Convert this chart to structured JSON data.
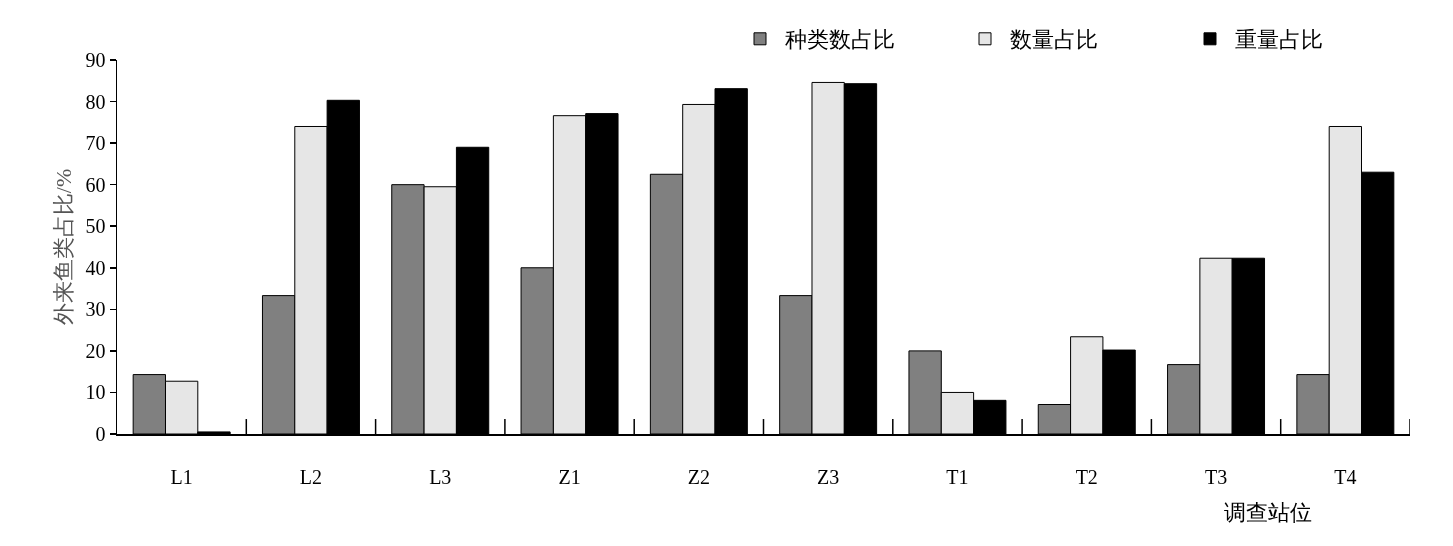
{
  "chart_data": {
    "type": "bar",
    "xlabel": "调查站位",
    "ylabel": "外来鱼类占比/%",
    "categories": [
      "L1",
      "L2",
      "L3",
      "Z1",
      "Z2",
      "Z3",
      "T1",
      "T2",
      "T3",
      "T4"
    ],
    "series": [
      {
        "name": "种类数占比",
        "color": "#808080",
        "values": [
          14.3,
          33.3,
          60,
          40,
          62.5,
          33.3,
          20,
          7.1,
          16.7,
          14.3
        ]
      },
      {
        "name": "数量占比",
        "color": "#e6e6e6",
        "values": [
          12.7,
          74,
          59.5,
          76.6,
          79.3,
          84.6,
          10,
          23.4,
          42.3,
          74
        ]
      },
      {
        "name": "重量占比",
        "color": "#000000",
        "values": [
          0.5,
          80.3,
          69,
          77.1,
          83.1,
          84.3,
          8.1,
          20.2,
          42.3,
          63
        ]
      }
    ],
    "ylim": [
      0,
      90
    ],
    "yticks": [
      0,
      10,
      20,
      30,
      40,
      50,
      60,
      70,
      80,
      90
    ],
    "grid": false,
    "legend": "top right"
  }
}
